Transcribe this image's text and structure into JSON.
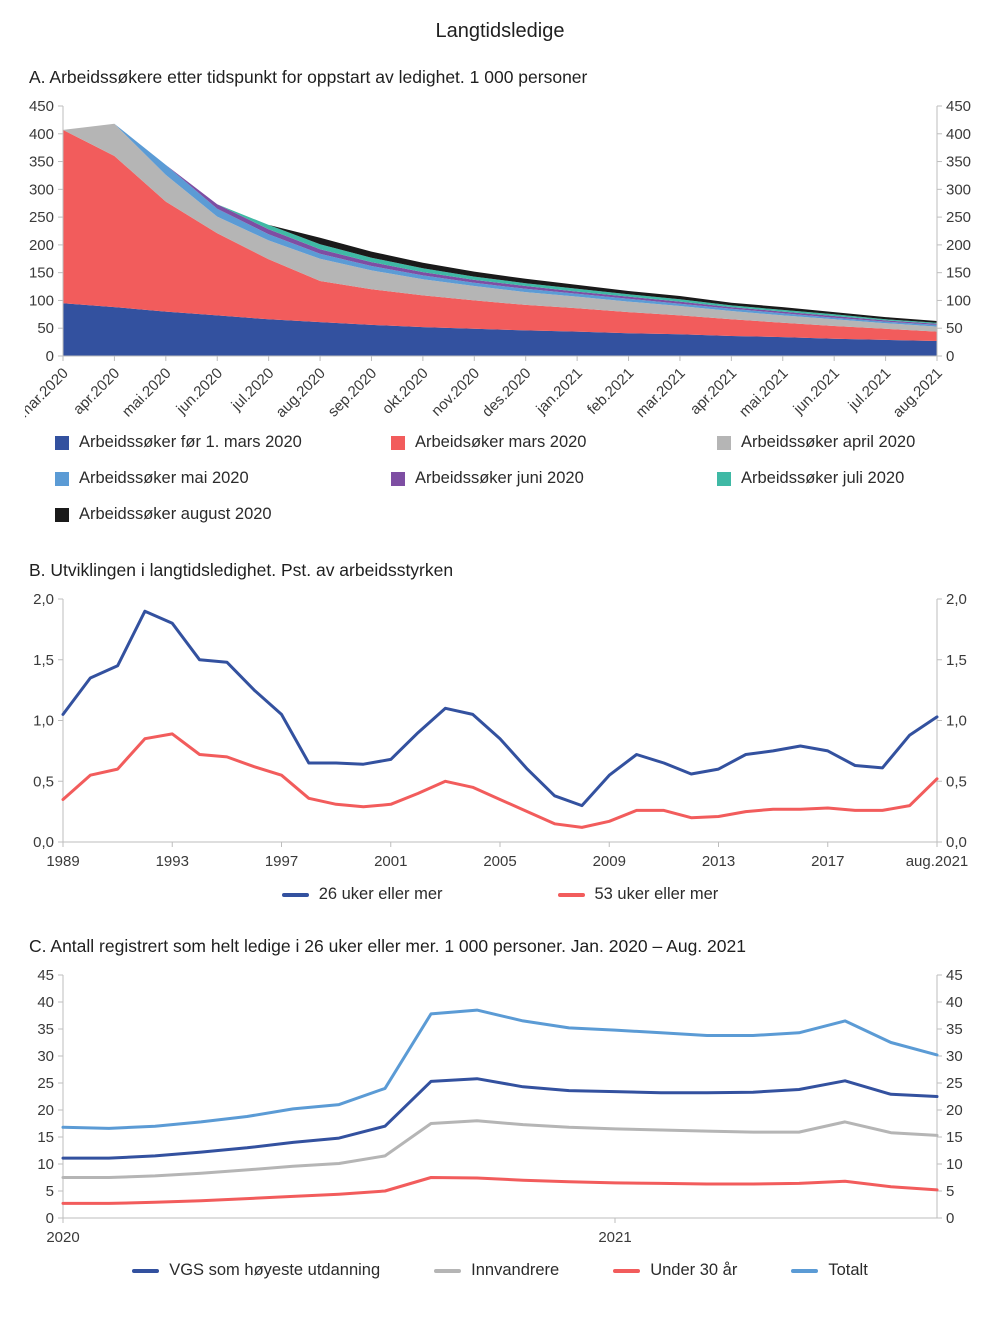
{
  "title": "Langtidsledige",
  "colors": {
    "axis": "#bdbdbd",
    "tick_text": "#3a3a3a",
    "dark_blue": "#33519f",
    "red": "#f25c5c",
    "gray": "#b5b5b5",
    "light_blue": "#5b9bd5",
    "purple": "#7e4ea3",
    "teal": "#3fb9a5",
    "black": "#1a1a1a"
  },
  "panels": {
    "a": {
      "heading": "A.  Arbeidssøkere etter tidspunkt for oppstart av ledighet. 1 000 personer"
    },
    "b": {
      "heading": "B.  Utviklingen i langtidsledighet. Pst. av arbeidsstyrken"
    },
    "c": {
      "heading": "C.  Antall registrert som helt ledige i 26 uker eller mer. 1 000 personer. Jan. 2020 – Aug. 2021"
    }
  },
  "chart_data": [
    {
      "id": "a",
      "type": "area",
      "stacked": true,
      "title": "Arbeidssøkere etter tidspunkt for oppstart av ledighet. 1 000 personer",
      "categories": [
        "mar.2020",
        "apr.2020",
        "mai.2020",
        "jun.2020",
        "jul.2020",
        "aug.2020",
        "sep.2020",
        "okt.2020",
        "nov.2020",
        "des.2020",
        "jan.2021",
        "feb.2021",
        "mar.2021",
        "apr.2021",
        "mai.2021",
        "jun.2021",
        "jul.2021",
        "aug.2021"
      ],
      "ylim": [
        0,
        450
      ],
      "yticks": [
        {
          "v": 0,
          "label": "0"
        },
        {
          "v": 50,
          "label": "50"
        },
        {
          "v": 100,
          "label": "100"
        },
        {
          "v": 150,
          "label": "150"
        },
        {
          "v": 200,
          "label": "200"
        },
        {
          "v": 250,
          "label": "250"
        },
        {
          "v": 300,
          "label": "300"
        },
        {
          "v": 350,
          "label": "350"
        },
        {
          "v": 400,
          "label": "400"
        },
        {
          "v": 450,
          "label": "450"
        }
      ],
      "legend_position": "below",
      "series": [
        {
          "name": "Arbeidssøker før 1. mars 2020",
          "color": "#33519f",
          "values": [
            95,
            88,
            80,
            73,
            66,
            61,
            56,
            52,
            49,
            46,
            44,
            41,
            39,
            36,
            34,
            31,
            29,
            27
          ]
        },
        {
          "name": "Arbeidsøker mars 2020",
          "color": "#f25c5c",
          "values": [
            312,
            272,
            198,
            148,
            108,
            74,
            64,
            57,
            51,
            46,
            42,
            38,
            34,
            30,
            26,
            23,
            20,
            17
          ]
        },
        {
          "name": "Arbeidssøker april 2020",
          "color": "#b5b5b5",
          "values": [
            0,
            58,
            48,
            30,
            34,
            40,
            34,
            29,
            26,
            23,
            21,
            19,
            17,
            15,
            13,
            12,
            10,
            9
          ]
        },
        {
          "name": "Arbeidssøker mai 2020",
          "color": "#5b9bd5",
          "values": [
            0,
            0,
            18,
            14,
            11,
            9,
            8,
            7,
            6,
            6,
            5,
            5,
            4,
            4,
            4,
            3,
            3,
            3
          ]
        },
        {
          "name": "Arbeidssøker juni 2020",
          "color": "#7e4ea3",
          "values": [
            0,
            0,
            0,
            8,
            9,
            8,
            7,
            6,
            5,
            5,
            4,
            4,
            4,
            3,
            3,
            3,
            2,
            2
          ]
        },
        {
          "name": "Arbeidssøker juli 2020",
          "color": "#3fb9a5",
          "values": [
            0,
            0,
            0,
            0,
            8,
            9,
            8,
            7,
            6,
            5,
            5,
            4,
            4,
            3,
            3,
            3,
            2,
            2
          ]
        },
        {
          "name": "Arbeidssøker august 2020",
          "color": "#1a1a1a",
          "values": [
            0,
            0,
            0,
            0,
            0,
            12,
            11,
            10,
            9,
            8,
            7,
            6,
            6,
            5,
            5,
            4,
            4,
            3
          ]
        }
      ]
    },
    {
      "id": "b",
      "type": "line",
      "title": "Utviklingen i langtidsledighet. Pst. av arbeidsstyrken",
      "x": [
        "1989",
        "1990",
        "1991",
        "1992",
        "1993",
        "1994",
        "1995",
        "1996",
        "1997",
        "1998",
        "1999",
        "2000",
        "2001",
        "2002",
        "2003",
        "2004",
        "2005",
        "2006",
        "2007",
        "2008",
        "2009",
        "2010",
        "2011",
        "2012",
        "2013",
        "2014",
        "2015",
        "2016",
        "2017",
        "2018",
        "2019",
        "2020",
        "aug.2021"
      ],
      "xticks": [
        {
          "i": 0,
          "label": "1989"
        },
        {
          "i": 4,
          "label": "1993"
        },
        {
          "i": 8,
          "label": "1997"
        },
        {
          "i": 12,
          "label": "2001"
        },
        {
          "i": 16,
          "label": "2005"
        },
        {
          "i": 20,
          "label": "2009"
        },
        {
          "i": 24,
          "label": "2013"
        },
        {
          "i": 28,
          "label": "2017"
        },
        {
          "i": 32,
          "label": "aug.2021"
        }
      ],
      "ylim": [
        0,
        2
      ],
      "yticks": [
        {
          "v": 0,
          "label": "0,0"
        },
        {
          "v": 0.5,
          "label": "0,5"
        },
        {
          "v": 1,
          "label": "1,0"
        },
        {
          "v": 1.5,
          "label": "1,5"
        },
        {
          "v": 2,
          "label": "2,0"
        }
      ],
      "legend_position": "below",
      "series": [
        {
          "name": "26 uker eller mer",
          "color": "#33519f",
          "values": [
            1.05,
            1.35,
            1.45,
            1.9,
            1.8,
            1.5,
            1.48,
            1.25,
            1.05,
            0.65,
            0.65,
            0.64,
            0.68,
            0.9,
            1.1,
            1.05,
            0.85,
            0.6,
            0.38,
            0.3,
            0.55,
            0.72,
            0.65,
            0.56,
            0.6,
            0.72,
            0.75,
            0.79,
            0.75,
            0.63,
            0.61,
            0.88,
            1.03
          ]
        },
        {
          "name": "53 uker eller mer",
          "color": "#f25c5c",
          "values": [
            0.35,
            0.55,
            0.6,
            0.85,
            0.89,
            0.72,
            0.7,
            0.62,
            0.55,
            0.36,
            0.31,
            0.29,
            0.31,
            0.4,
            0.5,
            0.45,
            0.35,
            0.25,
            0.15,
            0.12,
            0.17,
            0.26,
            0.26,
            0.2,
            0.21,
            0.25,
            0.27,
            0.27,
            0.28,
            0.26,
            0.26,
            0.3,
            0.52
          ]
        }
      ]
    },
    {
      "id": "c",
      "type": "line",
      "title": "Antall registrert som helt ledige i 26 uker eller mer. 1 000 personer. Jan. 2020 – Aug. 2021",
      "x": [
        "jan.2020",
        "feb.2020",
        "mar.2020",
        "apr.2020",
        "mai.2020",
        "jun.2020",
        "jul.2020",
        "aug.2020",
        "sep.2020",
        "okt.2020",
        "nov.2020",
        "des.2020",
        "jan.2021",
        "feb.2021",
        "mar.2021",
        "apr.2021",
        "mai.2021",
        "jun.2021",
        "jul.2021",
        "aug.2021"
      ],
      "xticks": [
        {
          "i": 0,
          "label": "2020"
        },
        {
          "i": 12,
          "label": "2021"
        }
      ],
      "ylim": [
        0,
        45
      ],
      "yticks": [
        {
          "v": 0,
          "label": "0"
        },
        {
          "v": 5,
          "label": "5"
        },
        {
          "v": 10,
          "label": "10"
        },
        {
          "v": 15,
          "label": "15"
        },
        {
          "v": 20,
          "label": "20"
        },
        {
          "v": 25,
          "label": "25"
        },
        {
          "v": 30,
          "label": "30"
        },
        {
          "v": 35,
          "label": "35"
        },
        {
          "v": 40,
          "label": "40"
        },
        {
          "v": 45,
          "label": "45"
        }
      ],
      "legend_position": "below",
      "series": [
        {
          "name": "VGS som høyeste utdanning",
          "color": "#33519f",
          "values": [
            11.1,
            11.1,
            11.5,
            12.2,
            13.0,
            14.0,
            14.8,
            17.0,
            25.3,
            25.8,
            24.3,
            23.6,
            23.4,
            23.2,
            23.2,
            23.3,
            23.8,
            25.4,
            22.9,
            22.5
          ]
        },
        {
          "name": "Innvandrere",
          "color": "#b5b5b5",
          "values": [
            7.5,
            7.5,
            7.8,
            8.3,
            8.9,
            9.6,
            10.1,
            11.5,
            17.5,
            18.0,
            17.3,
            16.8,
            16.5,
            16.3,
            16.1,
            15.9,
            15.9,
            17.8,
            15.8,
            15.3
          ]
        },
        {
          "name": "Under 30 år",
          "color": "#f25c5c",
          "values": [
            2.7,
            2.7,
            2.9,
            3.2,
            3.6,
            4.0,
            4.4,
            5.0,
            7.5,
            7.4,
            7.0,
            6.7,
            6.5,
            6.4,
            6.3,
            6.3,
            6.4,
            6.8,
            5.8,
            5.2
          ]
        },
        {
          "name": "Totalt",
          "color": "#5b9bd5",
          "values": [
            16.8,
            16.6,
            17.0,
            17.8,
            18.8,
            20.2,
            21.0,
            24.0,
            37.8,
            38.5,
            36.5,
            35.2,
            34.8,
            34.3,
            33.8,
            33.8,
            34.3,
            36.5,
            32.5,
            30.2
          ]
        }
      ]
    }
  ]
}
